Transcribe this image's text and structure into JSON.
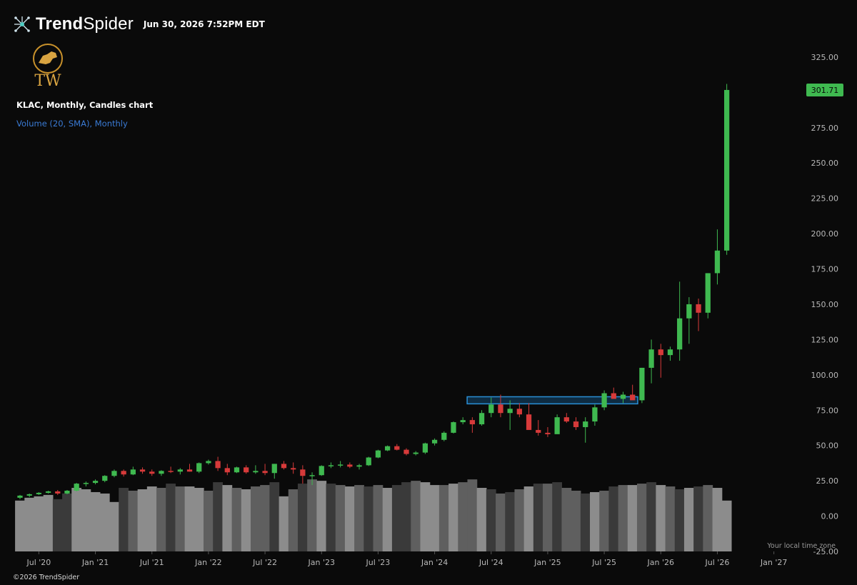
{
  "header": {
    "brand_bold": "Trend",
    "brand_light": "Spider",
    "datetime": "Jun 30, 2026 7:52PM EDT",
    "logo_text": "TW"
  },
  "chart_title": "KLAC, Monthly, Candles chart",
  "volume_label": "Volume (20, SMA), Monthly",
  "copyright": "©2026 TrendSpider",
  "timezone_note": "Your local time zone",
  "colors": {
    "up": "#3fb950",
    "down": "#d73a3a",
    "volume": [
      "#3a3a3a",
      "#5f5f5f",
      "#8c8c8c"
    ],
    "zone_fill": "#0f3a5a",
    "zone_stroke": "#2a8fd6",
    "last_price_tag": "#3fb950",
    "background": "#0a0a0a"
  },
  "chart_data": {
    "type": "candlestick",
    "ticker": "KLAC",
    "interval": "Monthly",
    "y_range": [
      -25,
      330
    ],
    "y_ticks": [
      "325.00",
      "300.00",
      "275.00",
      "250.00",
      "225.00",
      "200.00",
      "175.00",
      "150.00",
      "125.00",
      "100.00",
      "75.00",
      "50.00",
      "25.00",
      "0.00",
      "-25.00"
    ],
    "y_tick_values": [
      325,
      300,
      275,
      250,
      225,
      200,
      175,
      150,
      125,
      100,
      75,
      50,
      25,
      0,
      -25
    ],
    "x_ticks": [
      {
        "label": "Jul '20",
        "index": 2
      },
      {
        "label": "Jan '21",
        "index": 8
      },
      {
        "label": "Jul '21",
        "index": 14
      },
      {
        "label": "Jan '22",
        "index": 20
      },
      {
        "label": "Jul '22",
        "index": 26
      },
      {
        "label": "Jan '23",
        "index": 32
      },
      {
        "label": "Jul '23",
        "index": 38
      },
      {
        "label": "Jan '24",
        "index": 44
      },
      {
        "label": "Jul '24",
        "index": 50
      },
      {
        "label": "Jan '25",
        "index": 56
      },
      {
        "label": "Jul '25",
        "index": 62
      },
      {
        "label": "Jan '26",
        "index": 68
      },
      {
        "label": "Jul '26",
        "index": 74
      },
      {
        "label": "Jan '27",
        "index": 80
      }
    ],
    "x_range": [
      0,
      82
    ],
    "last_price": "301.71",
    "last_price_value": 301.71,
    "candles": [
      [
        13,
        15,
        12,
        14.5
      ],
      [
        14.5,
        16,
        13.5,
        15.5
      ],
      [
        15.5,
        17,
        15,
        16.5
      ],
      [
        16.5,
        18,
        16,
        17.5
      ],
      [
        17.5,
        18.5,
        15,
        16
      ],
      [
        16,
        18.5,
        15.5,
        18
      ],
      [
        18,
        23.5,
        17.5,
        23
      ],
      [
        23,
        24.5,
        21,
        23.5
      ],
      [
        23.5,
        26,
        22.5,
        25
      ],
      [
        25,
        29,
        24,
        28.5
      ],
      [
        28.5,
        33,
        27.5,
        32
      ],
      [
        32,
        33,
        28,
        29.5
      ],
      [
        29.5,
        35,
        29,
        33
      ],
      [
        33,
        34.5,
        30,
        31.5
      ],
      [
        31.5,
        33,
        28.5,
        30
      ],
      [
        30,
        32.5,
        28.5,
        32
      ],
      [
        32,
        35,
        30.5,
        31.5
      ],
      [
        31.5,
        34,
        29.5,
        33
      ],
      [
        33,
        37,
        31.5,
        31.5
      ],
      [
        31.5,
        38,
        30.5,
        37.5
      ],
      [
        37.5,
        40,
        36.5,
        39
      ],
      [
        39,
        42,
        32,
        34
      ],
      [
        34,
        37,
        29,
        31
      ],
      [
        31,
        35,
        30.5,
        34.5
      ],
      [
        34.5,
        36,
        30,
        31
      ],
      [
        31,
        36,
        30,
        32
      ],
      [
        32,
        37,
        29,
        30.5
      ],
      [
        30.5,
        37,
        26.5,
        37
      ],
      [
        37,
        39,
        33,
        34
      ],
      [
        34,
        38,
        30,
        33
      ],
      [
        33,
        36,
        23,
        28.5
      ],
      [
        28.5,
        31,
        22,
        29
      ],
      [
        29,
        36,
        28.5,
        35.5
      ],
      [
        35.5,
        38,
        34,
        36
      ],
      [
        36,
        39,
        34.5,
        36.5
      ],
      [
        36.5,
        38,
        34,
        35
      ],
      [
        35,
        37,
        33,
        36
      ],
      [
        36,
        42,
        35.5,
        41.5
      ],
      [
        41.5,
        47,
        41,
        46.5
      ],
      [
        46.5,
        50,
        46,
        49.5
      ],
      [
        49.5,
        51,
        46.5,
        47
      ],
      [
        47,
        48,
        43,
        44
      ],
      [
        44,
        46,
        43,
        45
      ],
      [
        45,
        52,
        44,
        51.5
      ],
      [
        51.5,
        55,
        50,
        54
      ],
      [
        54,
        60,
        53,
        59
      ],
      [
        59,
        67,
        58.5,
        66.5
      ],
      [
        66.5,
        70,
        65,
        68
      ],
      [
        68,
        70,
        59,
        65
      ],
      [
        65,
        75,
        64,
        73
      ],
      [
        73,
        84,
        70,
        79
      ],
      [
        79,
        86,
        70,
        73
      ],
      [
        73,
        82,
        61,
        76
      ],
      [
        76,
        80,
        70,
        72
      ],
      [
        72,
        80,
        62,
        61
      ],
      [
        61,
        68,
        57,
        59
      ],
      [
        59,
        63,
        56,
        58
      ],
      [
        58,
        72,
        60,
        70
      ],
      [
        70,
        73,
        66,
        67
      ],
      [
        67,
        70,
        61,
        63
      ],
      [
        63,
        70,
        52,
        67
      ],
      [
        67,
        79,
        64,
        77
      ],
      [
        77,
        89,
        75,
        87
      ],
      [
        87,
        91,
        84,
        83
      ],
      [
        83,
        88,
        80,
        86
      ],
      [
        86,
        93,
        84,
        82
      ],
      [
        82,
        105,
        80,
        105
      ],
      [
        105,
        125,
        94,
        118
      ],
      [
        118,
        122,
        98,
        114
      ],
      [
        114,
        120,
        110,
        118
      ],
      [
        118,
        166,
        110,
        140
      ],
      [
        140,
        155,
        122,
        150
      ],
      [
        150,
        154,
        131,
        144
      ],
      [
        144,
        172,
        140,
        172
      ],
      [
        172,
        203,
        164,
        188
      ],
      [
        188,
        306,
        185,
        301.71
      ]
    ],
    "volume_series": [
      -11,
      -13,
      -14,
      -15,
      -12,
      -16,
      -20,
      -19,
      -17,
      -16,
      -10,
      -20,
      -18,
      -19,
      -21,
      -20,
      -23,
      -21,
      -21,
      -20,
      -18,
      -24,
      -22,
      -20,
      -19,
      -21,
      -22,
      -24,
      -14,
      -19,
      -23,
      -26,
      -25,
      -23,
      -22,
      -21,
      -22,
      -21,
      -22,
      -20,
      -22,
      -24,
      -25,
      -24,
      -22,
      -22,
      -23,
      -24,
      -26,
      -20,
      -19,
      -16,
      -17,
      -19,
      -21,
      -23,
      -23,
      -24,
      -20,
      -18,
      -16,
      -17,
      -18,
      -21,
      -22,
      -22,
      -23,
      -24,
      -22,
      -21,
      -19,
      -20,
      -21,
      -22,
      -20,
      -11
    ],
    "volume_shade": [
      2,
      2,
      2,
      2,
      0,
      0,
      2,
      2,
      2,
      2,
      2,
      0,
      1,
      2,
      2,
      1,
      0,
      1,
      2,
      2,
      1,
      0,
      2,
      1,
      2,
      1,
      1,
      0,
      2,
      1,
      0,
      1,
      2,
      0,
      1,
      2,
      1,
      0,
      1,
      2,
      0,
      0,
      1,
      2,
      2,
      1,
      2,
      1,
      1,
      2,
      0,
      1,
      0,
      1,
      2,
      0,
      1,
      0,
      1,
      1,
      0,
      2,
      1,
      0,
      1,
      2,
      1,
      0,
      2,
      1,
      0,
      2,
      0,
      1,
      2,
      2
    ],
    "support_zone": {
      "start_index": 48,
      "end_index": 65,
      "low": 79.5,
      "high": 84.5
    }
  }
}
